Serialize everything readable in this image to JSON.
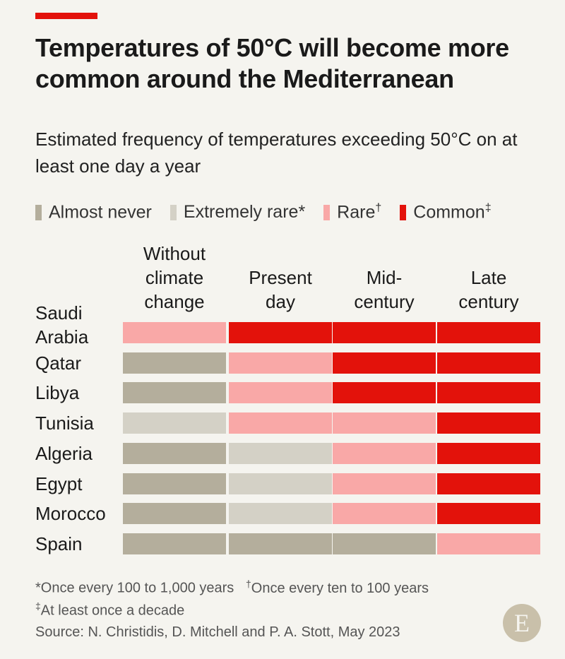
{
  "title": "Temperatures of 50°C will become more common around the Mediterranean",
  "subtitle": "Estimated frequency of temperatures exceeding 50°C on at least one day a year",
  "colors": {
    "accent": "#e3120b",
    "almost_never": "#b4ae9c",
    "extremely_rare": "#d4d1c6",
    "rare": "#f9a8a7",
    "common": "#e3120b"
  },
  "legend": [
    {
      "key": "almost_never",
      "label": "Almost never",
      "mark": ""
    },
    {
      "key": "extremely_rare",
      "label": "Extremely rare",
      "mark": "*"
    },
    {
      "key": "rare",
      "label": "Rare",
      "mark": "†"
    },
    {
      "key": "common",
      "label": "Common",
      "mark": "‡"
    }
  ],
  "chart_data": {
    "type": "heatmap",
    "columns": [
      "Without climate change",
      "Present day",
      "Mid-century",
      "Late century"
    ],
    "rows": [
      "Saudi Arabia",
      "Qatar",
      "Libya",
      "Tunisia",
      "Algeria",
      "Egypt",
      "Morocco",
      "Spain"
    ],
    "categories": [
      "Almost never",
      "Extremely rare",
      "Rare",
      "Common"
    ],
    "values": [
      [
        "rare",
        "common",
        "common",
        "common"
      ],
      [
        "almost_never",
        "rare",
        "common",
        "common"
      ],
      [
        "almost_never",
        "rare",
        "common",
        "common"
      ],
      [
        "extremely_rare",
        "rare",
        "rare",
        "common"
      ],
      [
        "almost_never",
        "extremely_rare",
        "rare",
        "common"
      ],
      [
        "almost_never",
        "extremely_rare",
        "rare",
        "common"
      ],
      [
        "almost_never",
        "extremely_rare",
        "rare",
        "common"
      ],
      [
        "almost_never",
        "almost_never",
        "almost_never",
        "rare"
      ]
    ]
  },
  "footnotes": {
    "extremely_rare": {
      "mark": "*",
      "text": "Once every 100 to 1,000 years"
    },
    "rare": {
      "mark": "†",
      "text": "Once every ten to 100 years"
    },
    "common": {
      "mark": "‡",
      "text": "At least once a decade"
    },
    "source": "Source: N. Christidis, D. Mitchell and P. A. Stott, May 2023"
  },
  "logo_letter": "E"
}
